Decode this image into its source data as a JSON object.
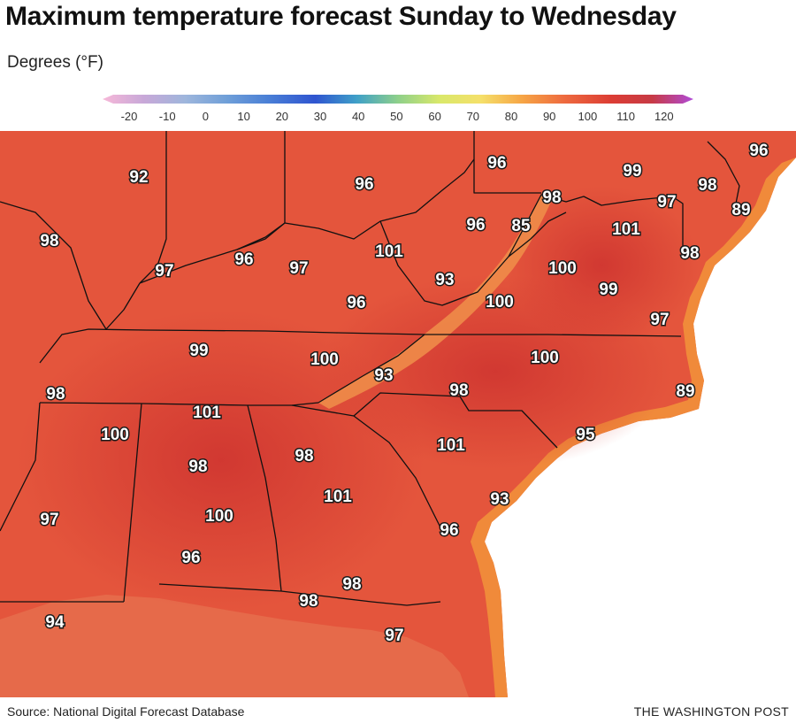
{
  "header": {
    "title": "Maximum temperature forecast Sunday to Wednesday",
    "subtitle": "Degrees (°F)"
  },
  "legend": {
    "ticks": [
      "-20",
      "-10",
      "0",
      "10",
      "20",
      "30",
      "40",
      "50",
      "60",
      "70",
      "80",
      "90",
      "100",
      "110",
      "120"
    ],
    "colors": [
      "#f7b8d8",
      "#c8a8d8",
      "#9eb6dc",
      "#6f9fd8",
      "#4a7fd6",
      "#2f55d0",
      "#3fa0c8",
      "#8ed08a",
      "#d9e86a",
      "#f5e06a",
      "#f6a545",
      "#ee6b3f",
      "#dc3d34",
      "#c73a45",
      "#b04bd8"
    ]
  },
  "map": {
    "labels": [
      {
        "value": "92"
      },
      {
        "value": "98"
      },
      {
        "value": "97"
      },
      {
        "value": "96"
      },
      {
        "value": "97"
      },
      {
        "value": "96"
      },
      {
        "value": "96"
      },
      {
        "value": "101"
      },
      {
        "value": "93"
      },
      {
        "value": "96"
      },
      {
        "value": "85"
      },
      {
        "value": "96"
      },
      {
        "value": "99"
      },
      {
        "value": "98"
      },
      {
        "value": "97"
      },
      {
        "value": "98"
      },
      {
        "value": "96"
      },
      {
        "value": "89"
      },
      {
        "value": "101"
      },
      {
        "value": "100"
      },
      {
        "value": "98"
      },
      {
        "value": "99"
      },
      {
        "value": "100"
      },
      {
        "value": "97"
      },
      {
        "value": "99"
      },
      {
        "value": "100"
      },
      {
        "value": "93"
      },
      {
        "value": "100"
      },
      {
        "value": "98"
      },
      {
        "value": "89"
      },
      {
        "value": "98"
      },
      {
        "value": "101"
      },
      {
        "value": "100"
      },
      {
        "value": "95"
      },
      {
        "value": "98"
      },
      {
        "value": "98"
      },
      {
        "value": "101"
      },
      {
        "value": "101"
      },
      {
        "value": "97"
      },
      {
        "value": "100"
      },
      {
        "value": "93"
      },
      {
        "value": "96"
      },
      {
        "value": "96"
      },
      {
        "value": "98"
      },
      {
        "value": "98"
      },
      {
        "value": "94"
      },
      {
        "value": "97"
      }
    ]
  },
  "footer": {
    "source": "Source: National Digital Forecast Database",
    "credit": "THE WASHINGTON POST"
  }
}
